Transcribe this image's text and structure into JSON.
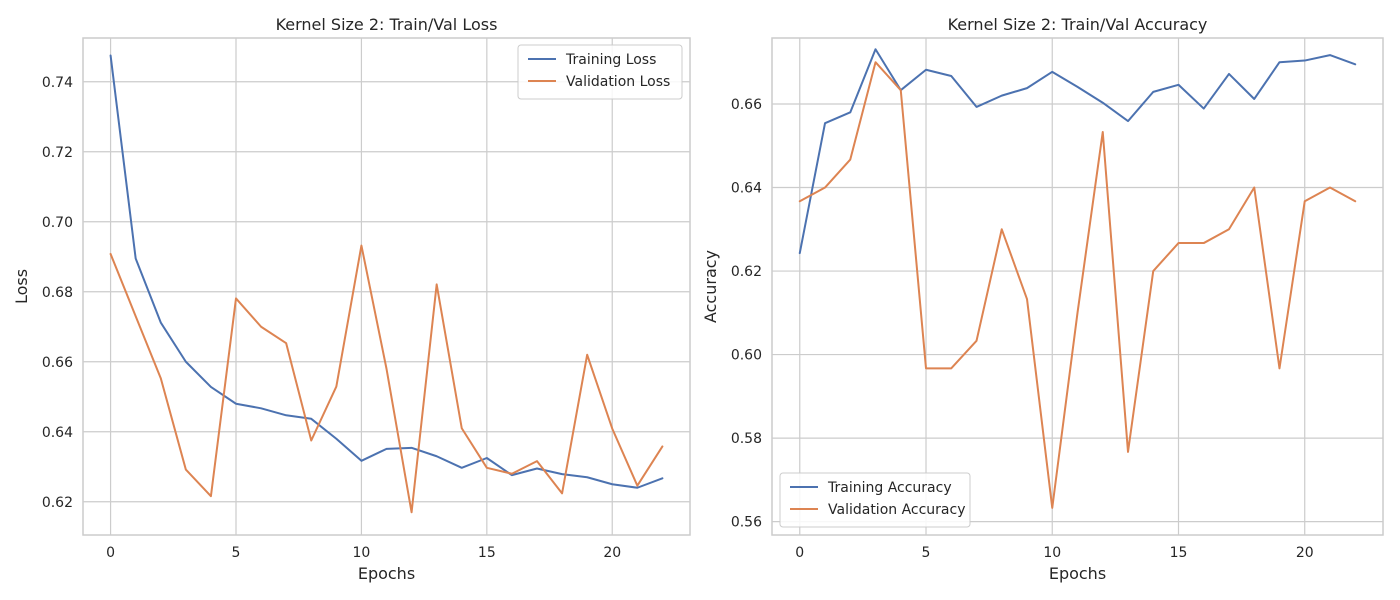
{
  "chart_data": [
    {
      "type": "line",
      "title": "Kernel Size 2:  Train/Val Loss",
      "xlabel": "Epochs",
      "ylabel": "Loss",
      "xlim": [
        -1.1,
        23.1
      ],
      "ylim": [
        0.6105,
        0.7525
      ],
      "xticks": [
        0,
        5,
        10,
        15,
        20
      ],
      "xtick_labels": [
        "0",
        "5",
        "10",
        "15",
        "20"
      ],
      "yticks": [
        0.62,
        0.64,
        0.66,
        0.68,
        0.7,
        0.72,
        0.74
      ],
      "ytick_labels": [
        "0.62",
        "0.64",
        "0.66",
        "0.68",
        "0.70",
        "0.72",
        "0.74"
      ],
      "grid": true,
      "legend_position": "upper right",
      "x": [
        0,
        1,
        2,
        3,
        4,
        5,
        6,
        7,
        8,
        9,
        10,
        11,
        12,
        13,
        14,
        15,
        16,
        17,
        18,
        19,
        20,
        21,
        22
      ],
      "series": [
        {
          "name": "Training Loss",
          "color": "#4c72b0",
          "values": [
            0.7475,
            0.6895,
            0.6712,
            0.66,
            0.6528,
            0.648,
            0.6467,
            0.6447,
            0.6437,
            0.638,
            0.6317,
            0.6351,
            0.6354,
            0.633,
            0.6297,
            0.6325,
            0.6276,
            0.6295,
            0.6279,
            0.627,
            0.625,
            0.624,
            0.6267
          ]
        },
        {
          "name": "Validation Loss",
          "color": "#dd8452",
          "values": [
            0.6908,
            0.673,
            0.6553,
            0.6292,
            0.6216,
            0.6781,
            0.67,
            0.6653,
            0.6375,
            0.6529,
            0.6932,
            0.658,
            0.617,
            0.6821,
            0.641,
            0.6297,
            0.628,
            0.6316,
            0.6224,
            0.662,
            0.6409,
            0.6246,
            0.6358
          ]
        }
      ]
    },
    {
      "type": "line",
      "title": "Kernel Size 2:  Train/Val Accuracy",
      "xlabel": "Epochs",
      "ylabel": "Accuracy",
      "xlim": [
        -1.1,
        23.1
      ],
      "ylim": [
        0.5568,
        0.6758
      ],
      "xticks": [
        0,
        5,
        10,
        15,
        20
      ],
      "xtick_labels": [
        "0",
        "5",
        "10",
        "15",
        "20"
      ],
      "yticks": [
        0.56,
        0.58,
        0.6,
        0.62,
        0.64,
        0.66
      ],
      "ytick_labels": [
        "0.56",
        "0.58",
        "0.60",
        "0.62",
        "0.64",
        "0.66"
      ],
      "grid": true,
      "legend_position": "lower left",
      "x": [
        0,
        1,
        2,
        3,
        4,
        5,
        6,
        7,
        8,
        9,
        10,
        11,
        12,
        13,
        14,
        15,
        16,
        17,
        18,
        19,
        20,
        21,
        22
      ],
      "series": [
        {
          "name": "Training Accuracy",
          "color": "#4c72b0",
          "values": [
            0.6243,
            0.6554,
            0.658,
            0.6731,
            0.6633,
            0.6682,
            0.6667,
            0.6593,
            0.662,
            0.6638,
            0.6677,
            0.6641,
            0.6603,
            0.6559,
            0.6629,
            0.6646,
            0.6589,
            0.6672,
            0.6612,
            0.67,
            0.6704,
            0.6717,
            0.6695
          ]
        },
        {
          "name": "Validation Accuracy",
          "color": "#dd8452",
          "values": [
            0.6367,
            0.64,
            0.6467,
            0.67,
            0.6633,
            0.5967,
            0.5967,
            0.6033,
            0.63,
            0.6133,
            0.5633,
            0.61,
            0.6533,
            0.5767,
            0.62,
            0.6267,
            0.6267,
            0.63,
            0.64,
            0.5967,
            0.6367,
            0.64,
            0.6367
          ]
        }
      ]
    }
  ]
}
